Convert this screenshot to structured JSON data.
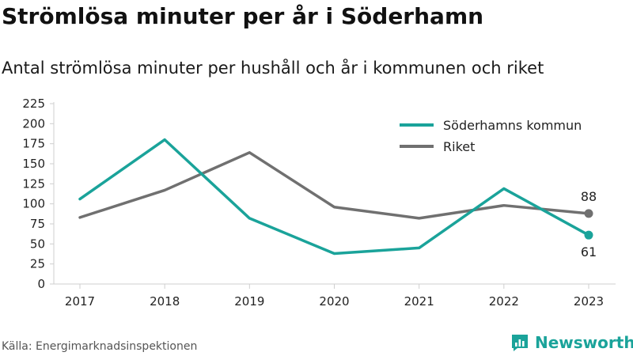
{
  "title": "Strömlösa minuter per år i Söderhamn",
  "subtitle": "Antal strömlösa minuter per hushåll och år i kommunen och riket",
  "source": "Källa: Energimarknadsinspektionen",
  "brand": {
    "name": "Newsworthy",
    "icon": "newsworthy-logo-icon",
    "color": "#1aa39a"
  },
  "chart_data": {
    "type": "line",
    "x": [
      "2017",
      "2018",
      "2019",
      "2020",
      "2021",
      "2022",
      "2023"
    ],
    "ylim": [
      0,
      225
    ],
    "yticks": [
      0,
      25,
      50,
      75,
      100,
      125,
      150,
      175,
      200,
      225
    ],
    "grid": false,
    "legend_position": "top-right",
    "series": [
      {
        "name": "Söderhamns kommun",
        "color": "#1aa39a",
        "values": [
          106,
          180,
          82,
          38,
          45,
          119,
          61
        ]
      },
      {
        "name": "Riket",
        "color": "#707070",
        "values": [
          83,
          117,
          164,
          96,
          82,
          98,
          88
        ]
      }
    ],
    "end_labels": [
      {
        "series": "Riket",
        "text": "88"
      },
      {
        "series": "Söderhamns kommun",
        "text": "61"
      }
    ]
  }
}
